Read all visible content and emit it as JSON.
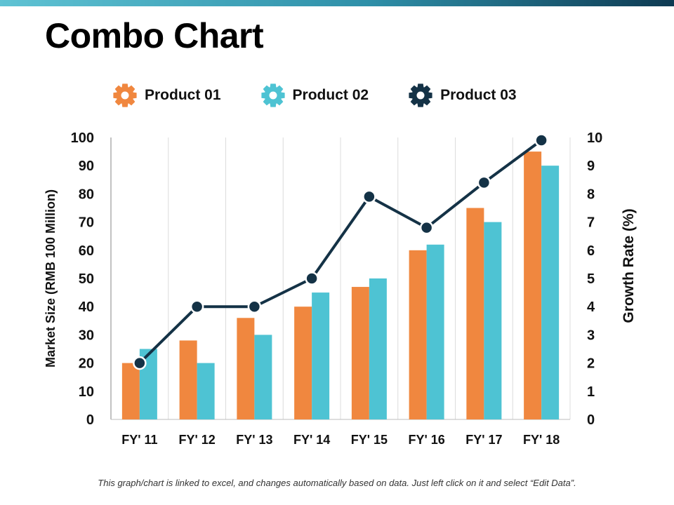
{
  "slide": {
    "title": "Combo Chart",
    "footnote": "This graph/chart is linked to excel, and changes automatically based on data. Just left click on it and select “Edit Data”."
  },
  "legend": [
    {
      "label": "Product 01",
      "color": "#f0873f",
      "icon": "gear-icon"
    },
    {
      "label": "Product 02",
      "color": "#4ec3d3",
      "icon": "gear-icon"
    },
    {
      "label": "Product 03",
      "color": "#143246",
      "icon": "gear-icon"
    }
  ],
  "chart_data": {
    "type": "bar",
    "categories": [
      "FY' 11",
      "FY' 12",
      "FY' 13",
      "FY' 14",
      "FY' 15",
      "FY' 16",
      "FY' 17",
      "FY' 18"
    ],
    "series": [
      {
        "name": "Product 01",
        "type": "bar",
        "axis": "left",
        "color": "#f0873f",
        "values": [
          20,
          28,
          36,
          40,
          47,
          60,
          75,
          95
        ]
      },
      {
        "name": "Product 02",
        "type": "bar",
        "axis": "left",
        "color": "#4ec3d3",
        "values": [
          25,
          20,
          30,
          45,
          50,
          62,
          70,
          90
        ]
      },
      {
        "name": "Product 03",
        "type": "line",
        "axis": "right",
        "color": "#143246",
        "values": [
          2,
          4,
          4,
          5,
          7.9,
          6.8,
          8.4,
          9.9
        ]
      }
    ],
    "ylabel": "Market Size (RMB 100 Million)",
    "y2label": "Growth Rate (%)",
    "ylim": [
      0,
      100
    ],
    "y2lim": [
      0,
      10
    ],
    "yticks": [
      "0",
      "10",
      "20",
      "30",
      "40",
      "50",
      "60",
      "70",
      "80",
      "90",
      "100"
    ],
    "y2ticks": [
      "0",
      "1",
      "2",
      "3",
      "4",
      "5",
      "6",
      "7",
      "8",
      "9",
      "10"
    ],
    "grid": "vertical",
    "legend_position": "top"
  }
}
